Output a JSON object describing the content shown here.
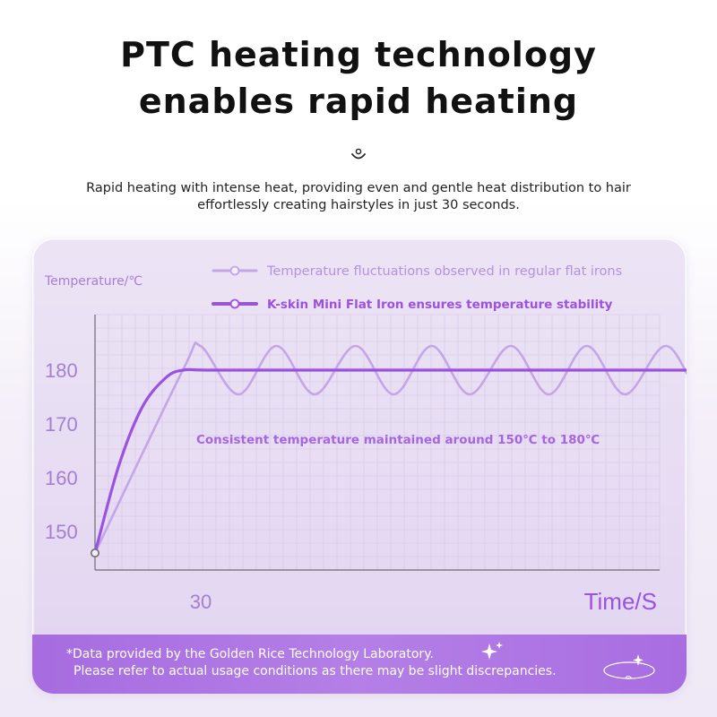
{
  "header": {
    "title_line1": "PTC heating technology",
    "title_line2": "enables rapid heating",
    "divider_icon": "smile-arc-icon",
    "subtitle_line1": "Rapid heating with intense heat, providing even and gentle heat distribution to hair",
    "subtitle_line2": "effortlessly creating hairstyles in just 30 seconds."
  },
  "colors": {
    "accent": "#9b52e0",
    "accent_light": "#c3a6e6",
    "grid": "#d9cbe9",
    "axis": "#6e6a74",
    "footnote_bg": "#ae78e4"
  },
  "chart_data": {
    "type": "line",
    "ylabel": "Temperature/℃",
    "xlabel": "Time/S",
    "y_ticks": [
      150,
      160,
      170,
      180
    ],
    "x_ticks": [
      30
    ],
    "annotation": "Consistent temperature maintained around 150℃ to 180℃",
    "grid": true,
    "legend_position": "top-right",
    "series": [
      {
        "name": "Temperature fluctuations observed in regular flat irons",
        "color": "#c3a6e6",
        "x": [
          0,
          30,
          36,
          49,
          62,
          75,
          89,
          102,
          115,
          128,
          142,
          155,
          168,
          181,
          195,
          208,
          221,
          234,
          244
        ],
        "y": [
          146,
          180,
          184.5,
          175.5,
          184.5,
          175.5,
          184.5,
          175.5,
          184.5,
          175.5,
          184.5,
          175.5,
          184.5,
          175.5,
          184.5,
          175.5,
          184.5,
          175.5,
          185
        ]
      },
      {
        "name": "K-skin Mini Flat Iron ensures temperature stability",
        "color": "#9b52e0",
        "x": [
          0,
          8,
          16,
          24,
          30,
          40,
          80,
          160,
          244
        ],
        "y": [
          146,
          162,
          173,
          178.5,
          180,
          180,
          180,
          180,
          180
        ]
      }
    ]
  },
  "footnote": {
    "line1": "*Data provided by the Golden Rice Technology Laboratory.",
    "line2": "Please refer to actual usage conditions as there may be slight discrepancies."
  }
}
